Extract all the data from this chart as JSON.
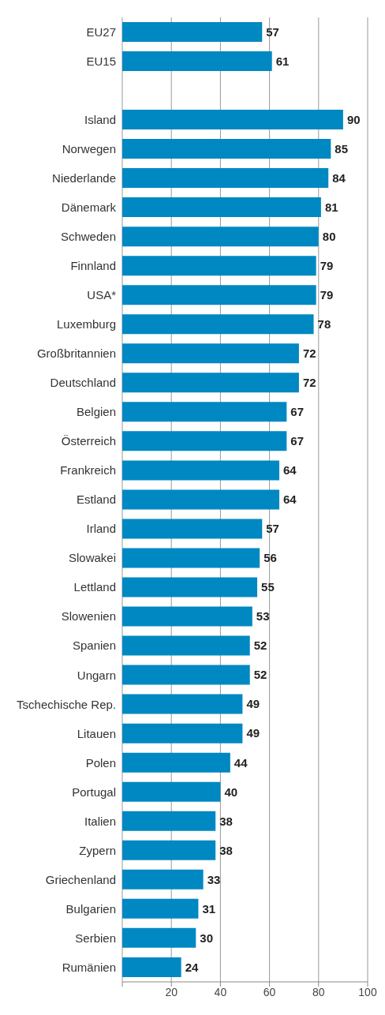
{
  "chart_data": {
    "type": "bar",
    "orientation": "horizontal",
    "categories": [
      "EU27",
      "EU15",
      null,
      "Island",
      "Norwegen",
      "Niederlande",
      "Dänemark",
      "Schweden",
      "Finnland",
      "USA*",
      "Luxemburg",
      "Großbritannien",
      "Deutschland",
      "Belgien",
      "Österreich",
      "Frankreich",
      "Estland",
      "Irland",
      "Slowakei",
      "Lettland",
      "Slowenien",
      "Spanien",
      "Ungarn",
      "Tschechische Rep.",
      "Litauen",
      "Polen",
      "Portugal",
      "Italien",
      "Zypern",
      "Griechenland",
      "Bulgarien",
      "Serbien",
      "Rumänien"
    ],
    "values": [
      57,
      61,
      null,
      90,
      85,
      84,
      81,
      80,
      79,
      79,
      78,
      72,
      72,
      67,
      67,
      64,
      64,
      57,
      56,
      55,
      53,
      52,
      52,
      49,
      49,
      44,
      40,
      38,
      38,
      33,
      31,
      30,
      24
    ],
    "color": "#0088c2",
    "xlim": [
      0,
      100
    ],
    "xticks": [
      {
        "value": 0,
        "label": null
      },
      20,
      40,
      60,
      80,
      100
    ],
    "grid": "x",
    "data_labels": true
  }
}
